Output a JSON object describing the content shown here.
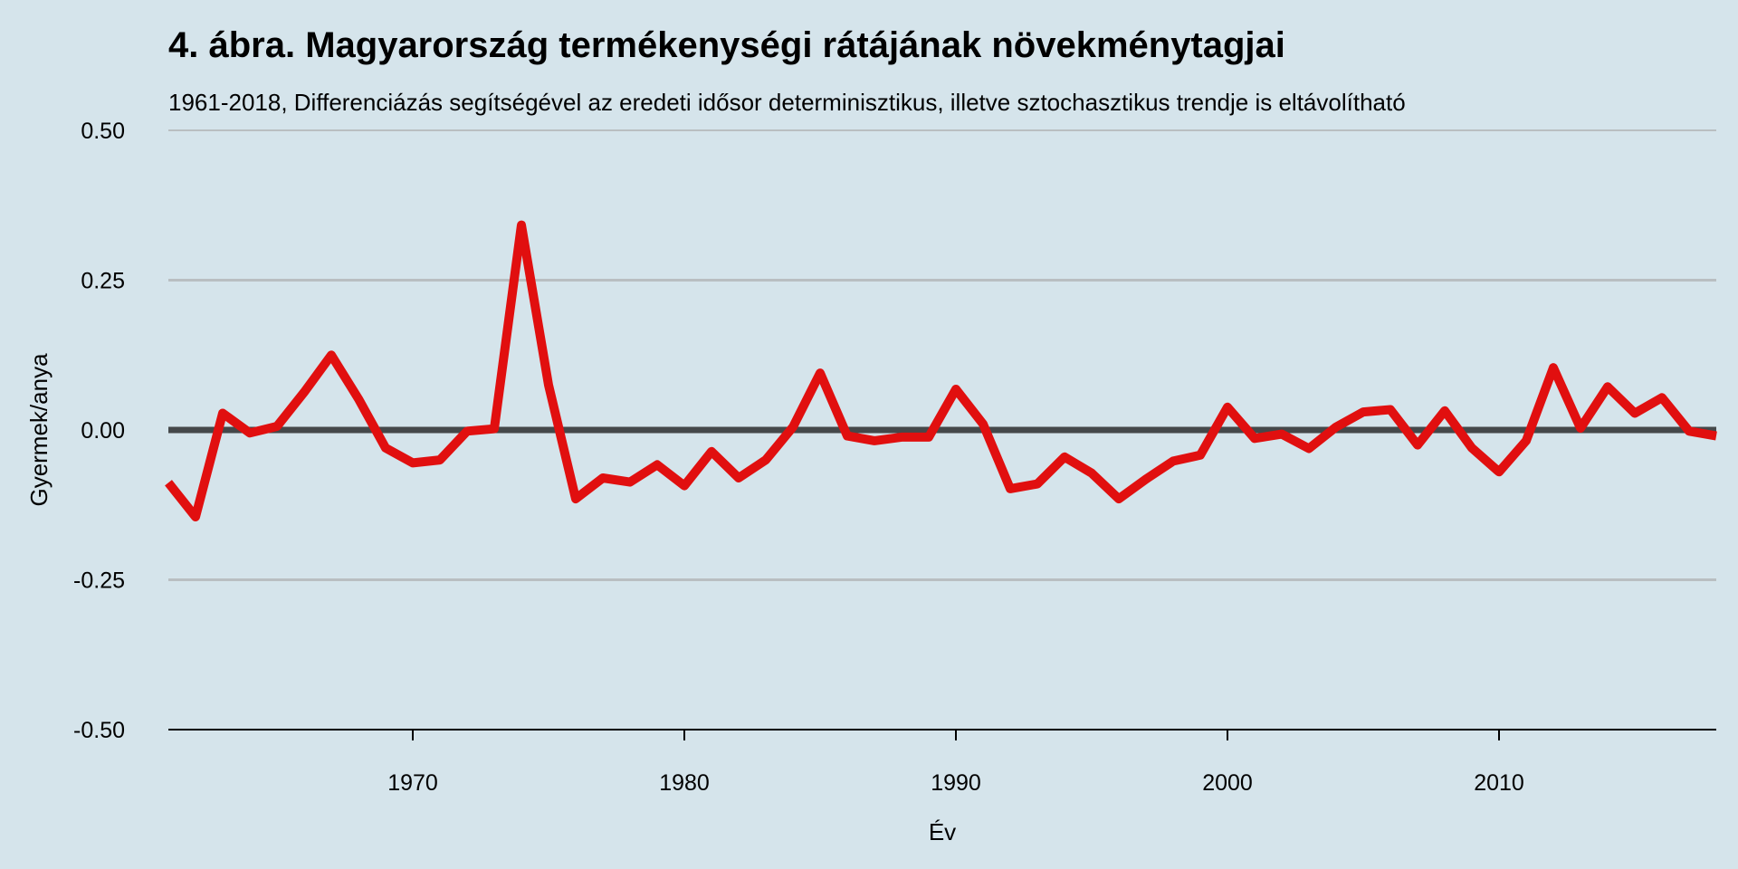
{
  "chart_data": {
    "type": "line",
    "title": "4. ábra. Magyarország termékenységi rátájának növekménytagjai",
    "subtitle": "1961-2018, Differenciázás segítségével az eredeti idősor determinisztikus, illetve sztochasztikus trendje is eltávolítható",
    "xlabel": "Év",
    "ylabel": "Gyermek/anya",
    "xlim": [
      1961,
      2018
    ],
    "ylim": [
      -0.5,
      0.5
    ],
    "xticks": [
      1970,
      1980,
      1990,
      2000,
      2010
    ],
    "yticks": [
      0.5,
      0.25,
      0,
      -0.25,
      -0.5
    ],
    "ytick_labels": [
      "0.50",
      "0.25",
      "0.00",
      "-0.25",
      "-0.50"
    ],
    "grid": "horizontal",
    "reference_line": 0,
    "series": [
      {
        "x": [
          1961,
          1962,
          1963,
          1964,
          1965,
          1966,
          1967,
          1968,
          1969,
          1970,
          1971,
          1972,
          1973,
          1974,
          1975,
          1976,
          1977,
          1978,
          1979,
          1980,
          1981,
          1982,
          1983,
          1984,
          1985,
          1986,
          1987,
          1988,
          1989,
          1990,
          1991,
          1992,
          1993,
          1994,
          1995,
          1996,
          1997,
          1998,
          1999,
          2000,
          2001,
          2002,
          2003,
          2004,
          2005,
          2006,
          2007,
          2008,
          2009,
          2010,
          2011,
          2012,
          2013,
          2014,
          2015,
          2016,
          2017,
          2018
        ],
        "values": [
          -0.088,
          -0.145,
          0.028,
          -0.005,
          0.006,
          0.063,
          0.125,
          0.052,
          -0.03,
          -0.055,
          -0.05,
          -0.002,
          0.002,
          0.342,
          0.075,
          -0.115,
          -0.08,
          -0.087,
          -0.058,
          -0.093,
          -0.036,
          -0.08,
          -0.05,
          0.005,
          0.095,
          -0.01,
          -0.018,
          -0.012,
          -0.012,
          0.068,
          0.01,
          -0.098,
          -0.09,
          -0.045,
          -0.072,
          -0.115,
          -0.082,
          -0.052,
          -0.042,
          0.038,
          -0.014,
          -0.007,
          -0.031,
          0.005,
          0.03,
          0.034,
          -0.025,
          0.032,
          -0.03,
          -0.07,
          -0.018,
          0.104,
          0.003,
          0.072,
          0.028,
          0.054,
          -0.002,
          -0.01
        ]
      }
    ],
    "colors": {
      "background": "#d5e4eb",
      "line": "#e10f0f",
      "grid": "#b9bec1",
      "zero_line": "#45484a",
      "axis": "#000000"
    }
  }
}
